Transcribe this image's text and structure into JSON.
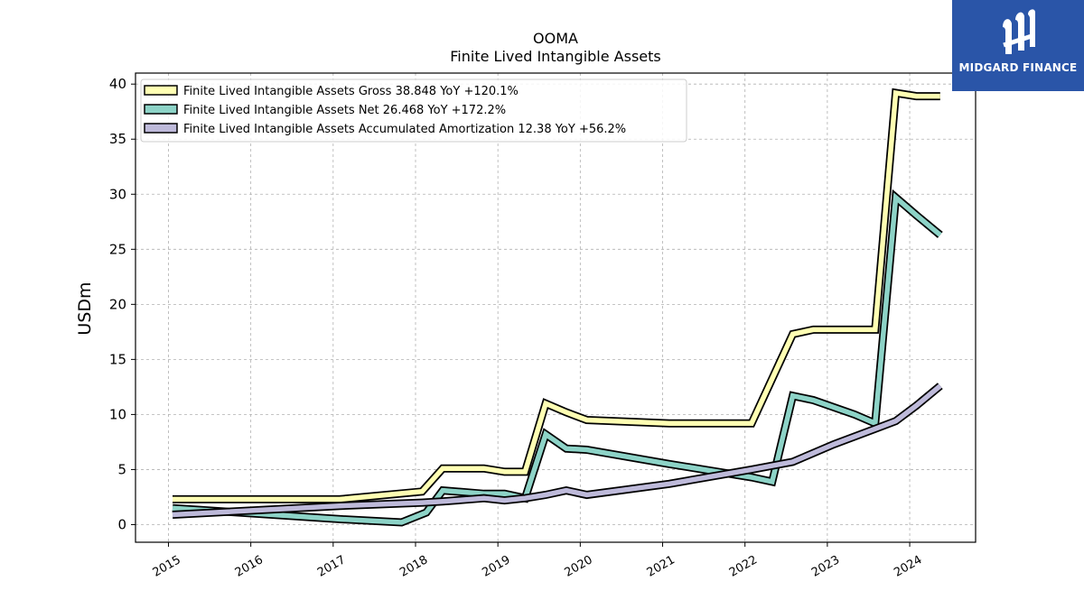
{
  "chart_data": {
    "type": "line",
    "title": "OOMA",
    "subtitle": "Finite Lived Intangible Assets",
    "xlabel": "",
    "ylabel": "USDm",
    "ylim": [
      -1.6,
      41
    ],
    "xlim": [
      2014.6,
      2024.8
    ],
    "x_ticks": [
      "2015",
      "2016",
      "2017",
      "2018",
      "2019",
      "2020",
      "2021",
      "2022",
      "2023",
      "2024"
    ],
    "y_ticks": [
      "0",
      "5",
      "10",
      "15",
      "20",
      "25",
      "30",
      "35",
      "40"
    ],
    "grid": true,
    "legend_position": "top-left",
    "series": [
      {
        "name": "Finite Lived Intangible Assets Gross  38.848 YoY +120.1%",
        "color": "#ffffb3",
        "points": [
          [
            2015.05,
            2.3
          ],
          [
            2017.08,
            2.3
          ],
          [
            2018.08,
            3.0
          ],
          [
            2018.33,
            5.1
          ],
          [
            2018.83,
            5.1
          ],
          [
            2019.08,
            4.8
          ],
          [
            2019.33,
            4.8
          ],
          [
            2019.58,
            11.0
          ],
          [
            2019.83,
            10.2
          ],
          [
            2020.08,
            9.5
          ],
          [
            2021.08,
            9.2
          ],
          [
            2022.08,
            9.2
          ],
          [
            2022.58,
            17.3
          ],
          [
            2022.83,
            17.7
          ],
          [
            2023.58,
            17.7
          ],
          [
            2023.83,
            39.2
          ],
          [
            2024.08,
            38.9
          ],
          [
            2024.37,
            38.9
          ]
        ]
      },
      {
        "name": "Finite Lived Intangible Assets Net  26.468 YoY +172.2%",
        "color": "#8dd3c7",
        "points": [
          [
            2015.05,
            1.5
          ],
          [
            2017.08,
            0.5
          ],
          [
            2017.83,
            0.2
          ],
          [
            2018.13,
            1.1
          ],
          [
            2018.33,
            3.1
          ],
          [
            2018.83,
            2.8
          ],
          [
            2019.08,
            2.8
          ],
          [
            2019.33,
            2.4
          ],
          [
            2019.58,
            8.2
          ],
          [
            2019.83,
            6.9
          ],
          [
            2020.08,
            6.8
          ],
          [
            2021.08,
            5.5
          ],
          [
            2022.08,
            4.3
          ],
          [
            2022.33,
            3.9
          ],
          [
            2022.58,
            11.7
          ],
          [
            2022.83,
            11.3
          ],
          [
            2023.33,
            10.0
          ],
          [
            2023.58,
            9.2
          ],
          [
            2023.83,
            29.7
          ],
          [
            2024.08,
            28.1
          ],
          [
            2024.37,
            26.3
          ]
        ]
      },
      {
        "name": "Finite Lived Intangible Assets Accumulated Amortization  12.38 YoY +56.2%",
        "color": "#bebada",
        "points": [
          [
            2015.05,
            0.9
          ],
          [
            2017.08,
            1.7
          ],
          [
            2018.08,
            2.0
          ],
          [
            2018.33,
            2.1
          ],
          [
            2018.83,
            2.4
          ],
          [
            2019.08,
            2.2
          ],
          [
            2019.33,
            2.4
          ],
          [
            2019.58,
            2.7
          ],
          [
            2019.83,
            3.1
          ],
          [
            2020.08,
            2.7
          ],
          [
            2021.08,
            3.7
          ],
          [
            2022.08,
            5.0
          ],
          [
            2022.58,
            5.7
          ],
          [
            2023.08,
            7.3
          ],
          [
            2023.58,
            8.7
          ],
          [
            2023.83,
            9.4
          ],
          [
            2024.08,
            10.8
          ],
          [
            2024.37,
            12.6
          ]
        ]
      }
    ]
  },
  "logo": {
    "text": "MIDGARD FINANCE",
    "bg_color": "#2a55a8"
  }
}
